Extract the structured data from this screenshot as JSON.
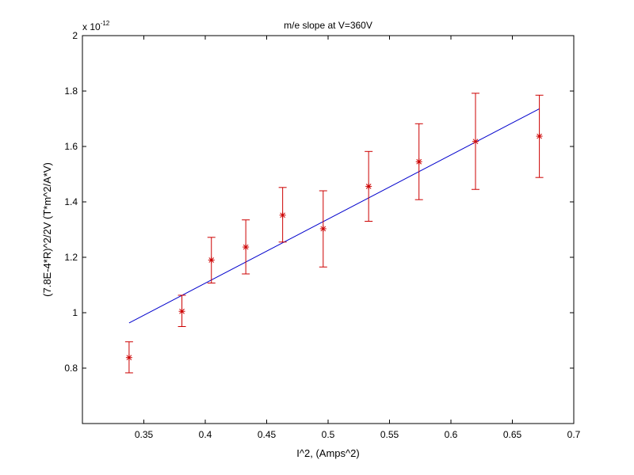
{
  "chart_data": {
    "type": "scatter",
    "title": "m/e slope at V=360V",
    "xlabel": "I^2, (Amps^2)",
    "ylabel": "(7.8E-4*R)^2/2V (T*m^2/A*V)",
    "y_exponent_label": "x 10",
    "y_exponent_value": "-12",
    "xlim": [
      0.3,
      0.7
    ],
    "ylim": [
      0.6,
      2.0
    ],
    "x_ticks": [
      "0.35",
      "0.4",
      "0.45",
      "0.5",
      "0.55",
      "0.6",
      "0.65",
      "0.7"
    ],
    "y_ticks": [
      "0.8",
      "1",
      "1.2",
      "1.4",
      "1.6",
      "1.8",
      "2"
    ],
    "grid": false,
    "legend": "none",
    "series": [
      {
        "kind": "errorbar",
        "color": "#cc0000",
        "marker": "*",
        "x": [
          0.338,
          0.381,
          0.405,
          0.433,
          0.463,
          0.496,
          0.533,
          0.574,
          0.62,
          0.672
        ],
        "y": [
          0.838,
          1.005,
          1.19,
          1.237,
          1.352,
          1.303,
          1.456,
          1.545,
          1.618,
          1.637
        ],
        "y_low": [
          0.783,
          0.95,
          1.107,
          1.14,
          1.255,
          1.165,
          1.33,
          1.408,
          1.445,
          1.488
        ],
        "y_high": [
          0.895,
          1.063,
          1.272,
          1.335,
          1.452,
          1.44,
          1.582,
          1.682,
          1.792,
          1.785
        ]
      },
      {
        "kind": "fit_line",
        "color": "#0000cc",
        "x": [
          0.338,
          0.672
        ],
        "y": [
          0.963,
          1.736
        ]
      }
    ]
  }
}
